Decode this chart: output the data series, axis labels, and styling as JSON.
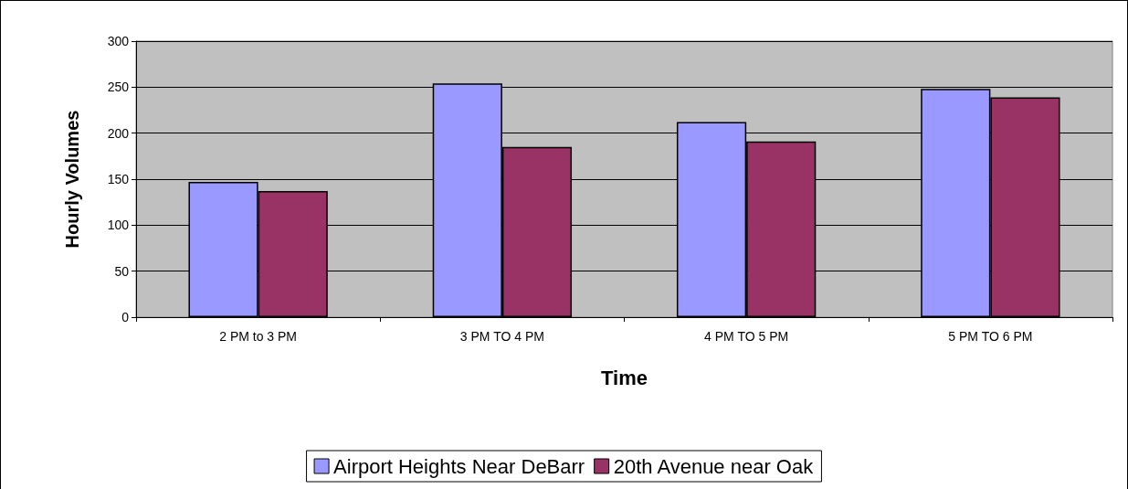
{
  "chart_data": {
    "type": "bar",
    "xlabel": "Time",
    "ylabel": "Hourly Volumes",
    "categories": [
      "2 PM to 3 PM",
      "3 PM TO 4 PM",
      "4 PM TO 5 PM",
      "5 PM TO 6 PM"
    ],
    "series": [
      {
        "name": "Airport Heights Near DeBarr",
        "color": "#9999ff",
        "values": [
          147,
          254,
          212,
          248
        ]
      },
      {
        "name": "20th Avenue near Oak",
        "color": "#993366",
        "values": [
          137,
          185,
          191,
          239
        ]
      }
    ],
    "ylim": [
      0,
      300
    ],
    "yticks": [
      0,
      50,
      100,
      150,
      200,
      250,
      300
    ],
    "grid": "y",
    "legend": "bottom"
  }
}
